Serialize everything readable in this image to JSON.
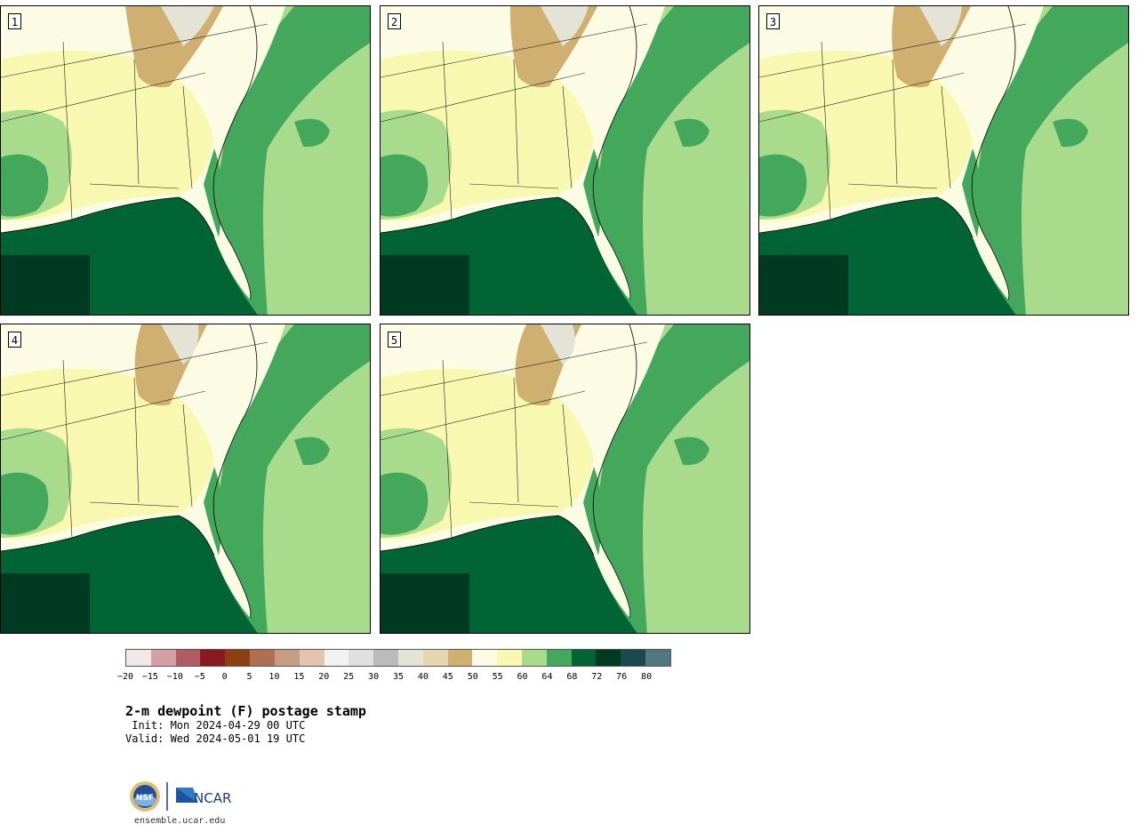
{
  "panels": [
    {
      "label": "1"
    },
    {
      "label": "2"
    },
    {
      "label": "3"
    },
    {
      "label": "4"
    },
    {
      "label": "5"
    }
  ],
  "colorbar": {
    "colors": [
      "#f3e8e8",
      "#d4a0a4",
      "#b05c62",
      "#8a1a20",
      "#8c4010",
      "#ad7050",
      "#c89c80",
      "#e4c4b0",
      "#f2f2f2",
      "#e0e0e0",
      "#bbbbbb",
      "#e4e4d6",
      "#e6d6b0",
      "#d0b070",
      "#fcfce4",
      "#f8f8b0",
      "#a8dc8c",
      "#44a85c",
      "#006434",
      "#003a22",
      "#1a4a50",
      "#507880"
    ],
    "ticks": [
      "−20",
      "−15",
      "−10",
      "−5",
      "0",
      "5",
      "10",
      "15",
      "20",
      "25",
      "30",
      "35",
      "40",
      "45",
      "50",
      "55",
      "60",
      "64",
      "68",
      "72",
      "76",
      "80"
    ]
  },
  "title": "2-m dewpoint (F) postage stamp",
  "init_text": " Init: Mon 2024-04-29 00 UTC",
  "valid_text": "Valid: Wed 2024-05-01 19 UTC",
  "logos": {
    "nsf": "NSF",
    "ncar": "NCAR"
  },
  "site": "ensemble.ucar.edu"
}
